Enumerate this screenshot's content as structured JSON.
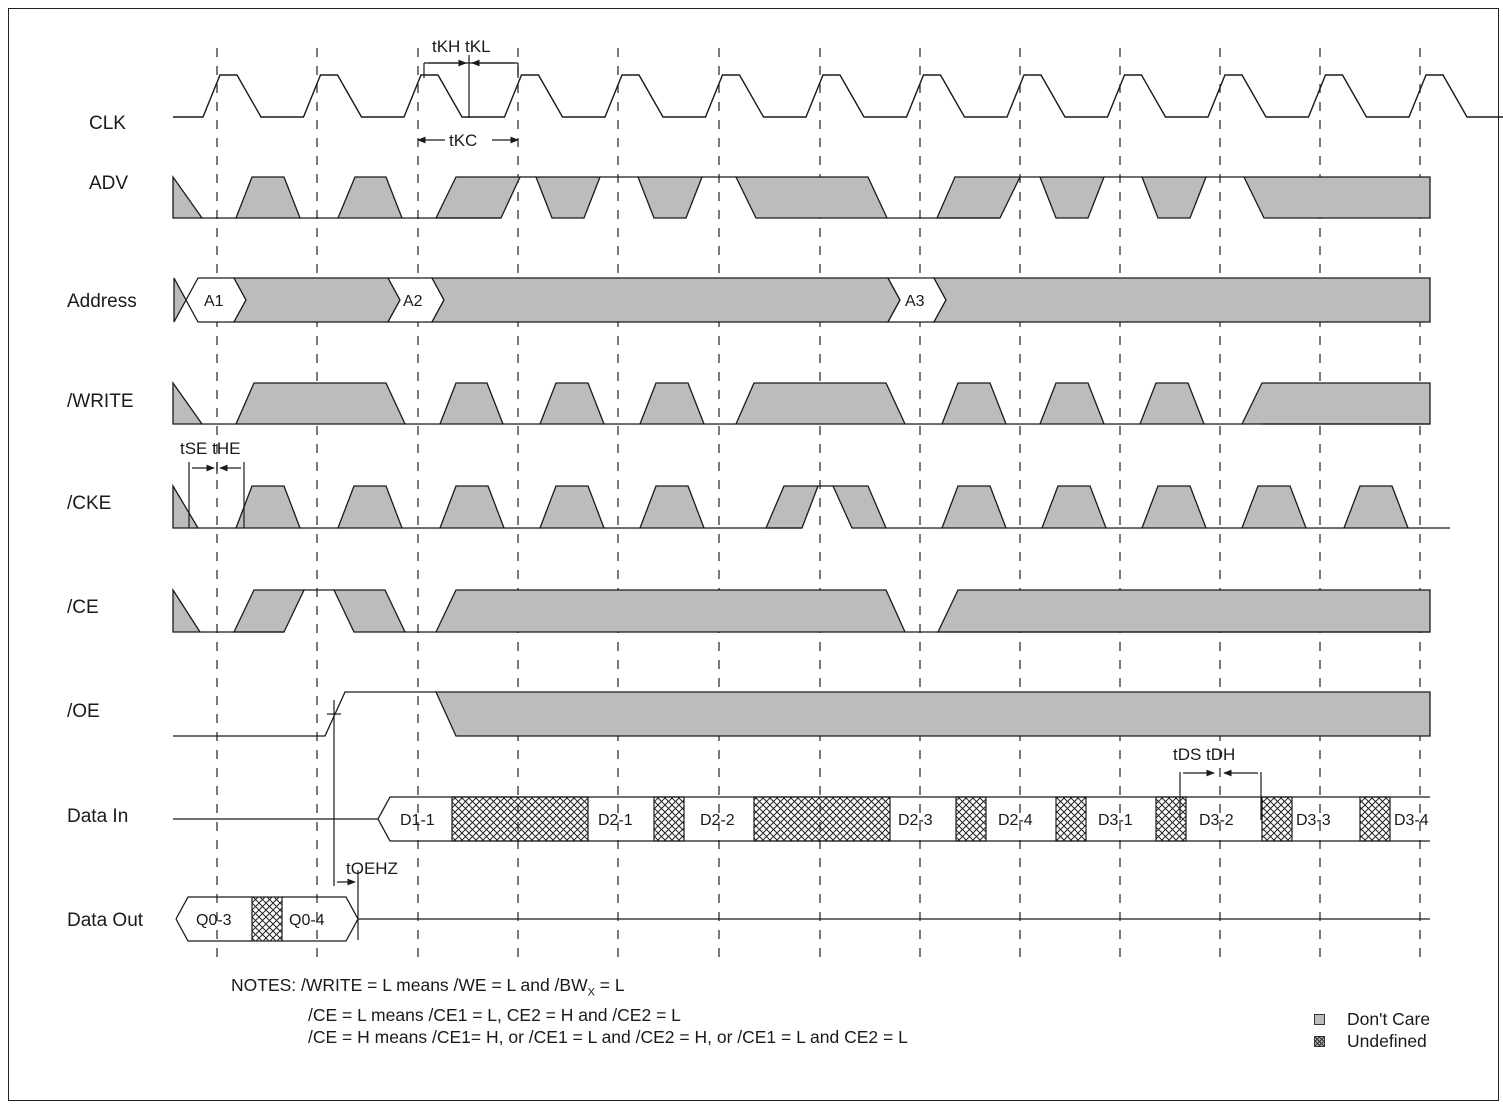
{
  "signals": [
    {
      "key": "clk",
      "label": "CLK"
    },
    {
      "key": "adv",
      "label": "ADV"
    },
    {
      "key": "address",
      "label": "Address"
    },
    {
      "key": "write",
      "label": "/WRITE"
    },
    {
      "key": "cke",
      "label": "/CKE"
    },
    {
      "key": "ce",
      "label": "/CE"
    },
    {
      "key": "oe",
      "label": "/OE"
    },
    {
      "key": "datain",
      "label": "Data In"
    },
    {
      "key": "dataout",
      "label": "Data Out"
    }
  ],
  "address_values": [
    "A1",
    "A2",
    "A3"
  ],
  "data_in_values": [
    "D1-1",
    "D2-1",
    "D2-2",
    "D2-3",
    "D2-4",
    "D3-1",
    "D3-2",
    "D3-3",
    "D3-4"
  ],
  "data_out_values": [
    "Q0-3",
    "Q0-4"
  ],
  "timing_labels": {
    "tkh_tkl": "tKH tKL",
    "tkc": "tKC",
    "tse_the": "tSE tHE",
    "toehz": "tOEHZ",
    "tds_tdh": "tDS tDH"
  },
  "notes": {
    "prefix": "NOTES: ",
    "line1_a": "/WRITE = L means /WE = L and /BW",
    "line1_sub": "X",
    "line1_b": " = L",
    "line2": "/CE = L means /CE1 = L, CE2 = H and /CE2 = L",
    "line3": "/CE = H means /CE1= H, or /CE1 = L and /CE2 = H, or /CE1 = L and CE2 = L"
  },
  "legend": {
    "dont_care": "Don't Care",
    "undefined": "Undefined"
  },
  "colors": {
    "dont_care_fill": "#bcbcbc",
    "line": "#1a1a1a"
  }
}
